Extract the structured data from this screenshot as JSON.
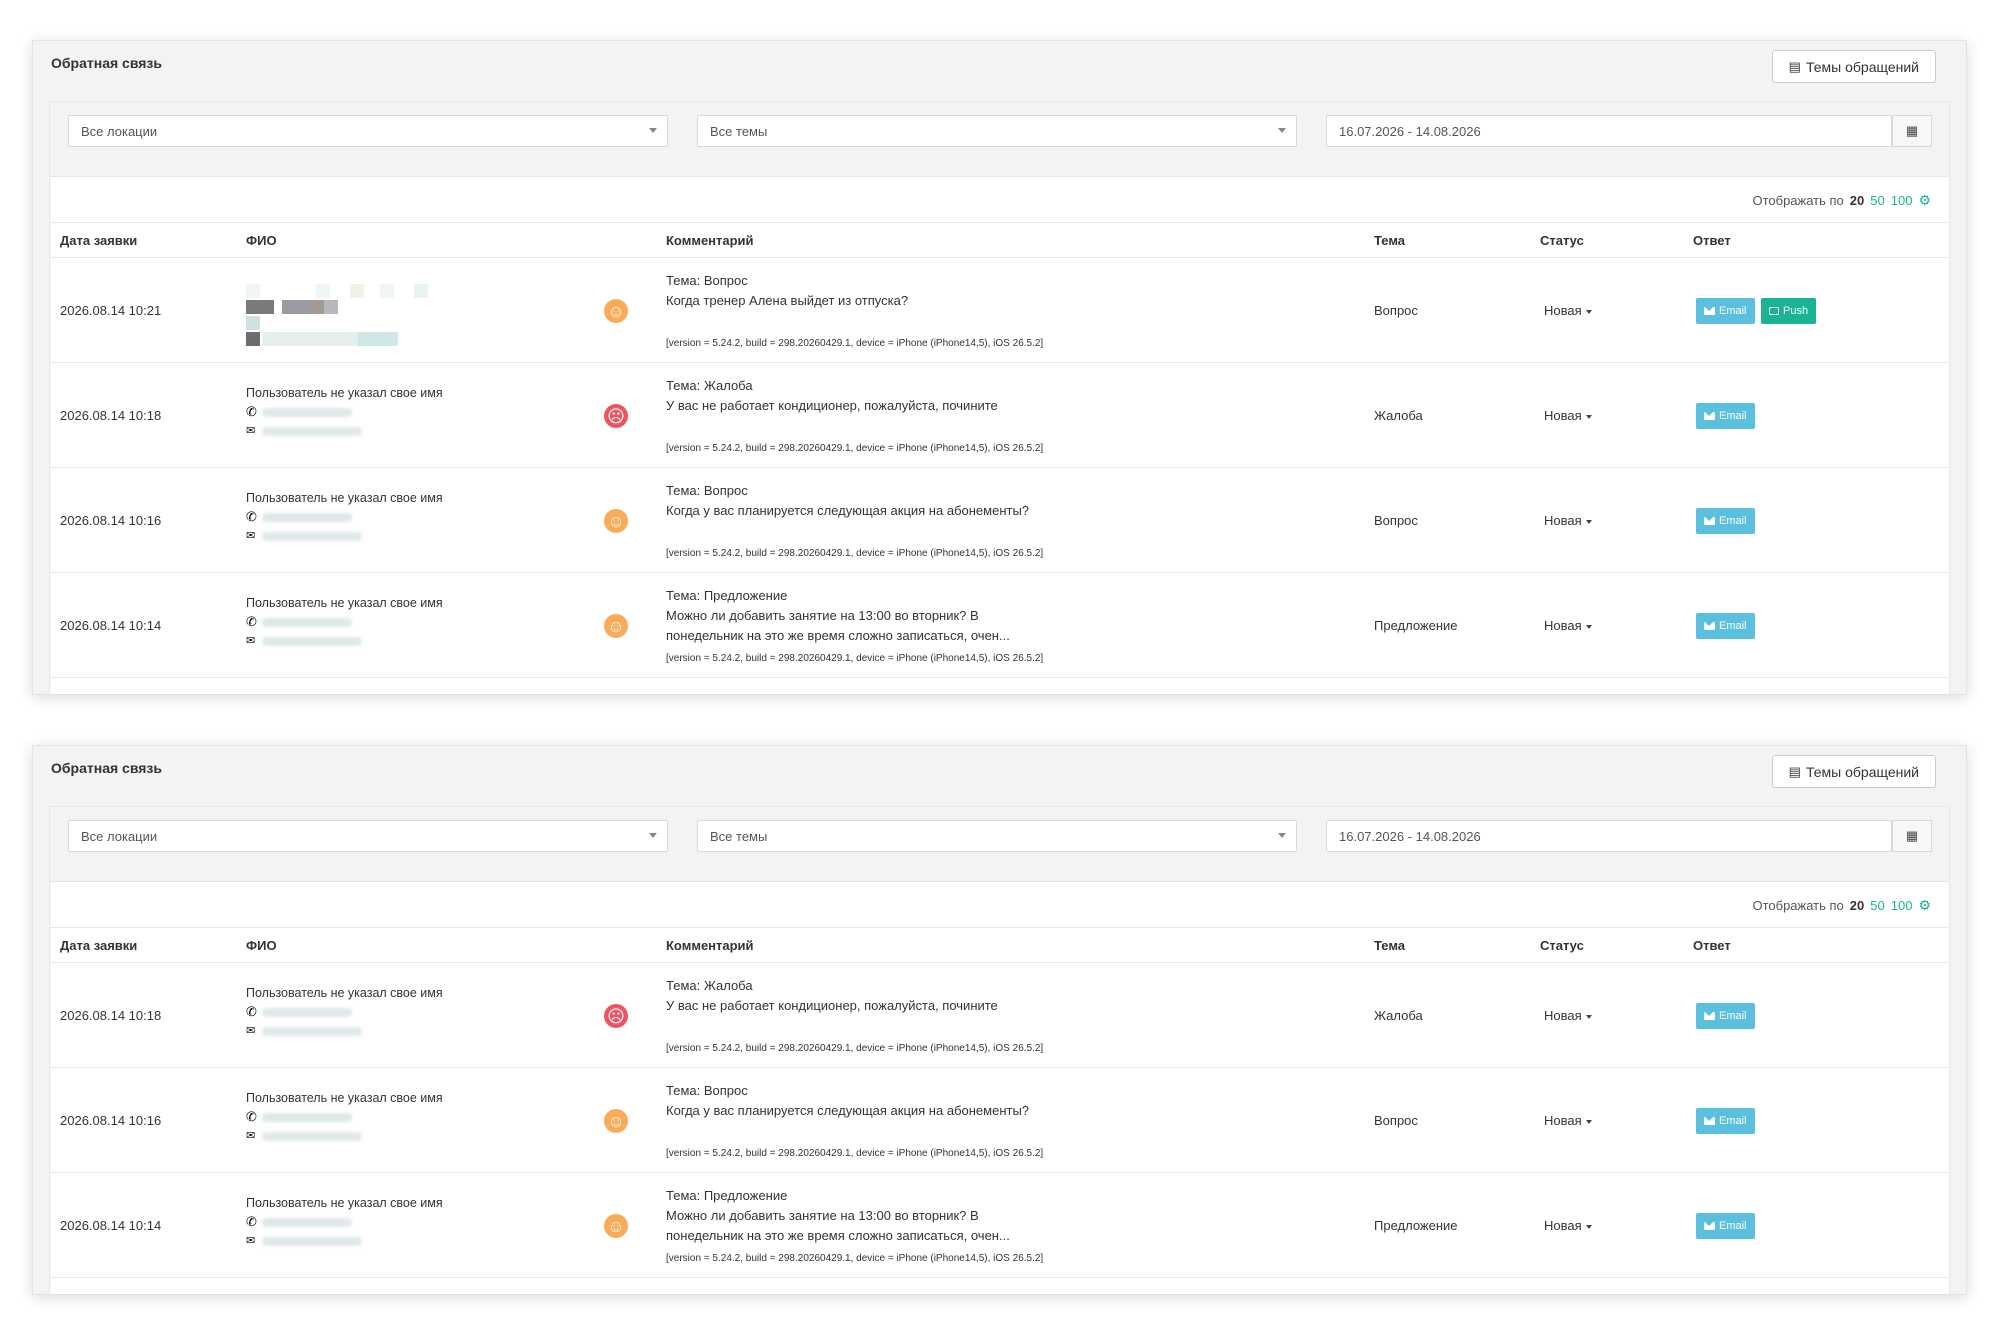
{
  "panels": [
    {
      "title": "Обратная связь",
      "topics_button": "Темы обращений",
      "filters": {
        "location": "Все локации",
        "topic": "Все темы",
        "date_range": "16.07.2026 - 14.08.2026"
      },
      "per_page": {
        "label": "Отображать по",
        "current": "20",
        "options": [
          "50",
          "100"
        ]
      },
      "columns": {
        "date": "Дата заявки",
        "name": "ФИО",
        "comment": "Комментарий",
        "topic": "Тема",
        "status": "Статус",
        "answer": "Ответ"
      },
      "rows": [
        {
          "date": "2026.08.14 10:21",
          "name": "",
          "mood": "neutral",
          "comment_topic": "Тема: Вопрос",
          "comment": "Когда тренер Алена выйдет из отпуска?",
          "meta": "[version = 5.24.2, build = 298.20260429.1, device = iPhone (iPhone14,5), iOS 26.5.2]",
          "topic": "Вопрос",
          "status": "Новая",
          "email": "Email",
          "push": "Push"
        },
        {
          "date": "2026.08.14 10:18",
          "name": "Пользователь не указал свое имя",
          "mood": "sad",
          "comment_topic": "Тема: Жалоба",
          "comment": "У вас не работает кондиционер, пожалуйста, почините",
          "meta": "[version = 5.24.2, build = 298.20260429.1, device = iPhone (iPhone14,5), iOS 26.5.2]",
          "topic": "Жалоба",
          "status": "Новая",
          "email": "Email"
        },
        {
          "date": "2026.08.14 10:16",
          "name": "Пользователь не указал свое имя",
          "mood": "neutral",
          "comment_topic": "Тема: Вопрос",
          "comment": "Когда у вас планируется следующая акция на абонементы?",
          "meta": "[version = 5.24.2, build = 298.20260429.1, device = iPhone (iPhone14,5), iOS 26.5.2]",
          "topic": "Вопрос",
          "status": "Новая",
          "email": "Email"
        },
        {
          "date": "2026.08.14 10:14",
          "name": "Пользователь не указал свое имя",
          "mood": "neutral",
          "comment_topic": "Тема: Предложение",
          "comment": "Можно ли добавить занятие на 13:00 во вторник? В понедельник на это же время сложно записаться, очен...",
          "meta": "[version = 5.24.2, build = 298.20260429.1, device = iPhone (iPhone14,5), iOS 26.5.2]",
          "topic": "Предложение",
          "status": "Новая",
          "email": "Email"
        }
      ]
    },
    {
      "title": "Обратная связь",
      "topics_button": "Темы обращений",
      "filters": {
        "location": "Все локации",
        "topic": "Все темы",
        "date_range": "16.07.2026 - 14.08.2026"
      },
      "per_page": {
        "label": "Отображать по",
        "current": "20",
        "options": [
          "50",
          "100"
        ]
      },
      "columns": {
        "date": "Дата заявки",
        "name": "ФИО",
        "comment": "Комментарий",
        "topic": "Тема",
        "status": "Статус",
        "answer": "Ответ"
      },
      "rows": [
        {
          "date": "2026.08.14 10:18",
          "name": "Пользователь не указал свое имя",
          "mood": "sad",
          "comment_topic": "Тема: Жалоба",
          "comment": "У вас не работает кондиционер, пожалуйста, почините",
          "meta": "[version = 5.24.2, build = 298.20260429.1, device = iPhone (iPhone14,5), iOS 26.5.2]",
          "topic": "Жалоба",
          "status": "Новая",
          "email": "Email"
        },
        {
          "date": "2026.08.14 10:16",
          "name": "Пользователь не указал свое имя",
          "mood": "neutral",
          "comment_topic": "Тема: Вопрос",
          "comment": "Когда у вас планируется следующая акция на абонементы?",
          "meta": "[version = 5.24.2, build = 298.20260429.1, device = iPhone (iPhone14,5), iOS 26.5.2]",
          "topic": "Вопрос",
          "status": "Новая",
          "email": "Email"
        },
        {
          "date": "2026.08.14 10:14",
          "name": "Пользователь не указал свое имя",
          "mood": "neutral",
          "comment_topic": "Тема: Предложение",
          "comment": "Можно ли добавить занятие на 13:00 во вторник? В понедельник на это же время сложно записаться, очен...",
          "meta": "[version = 5.24.2, build = 298.20260429.1, device = iPhone (iPhone14,5), iOS 26.5.2]",
          "topic": "Предложение",
          "status": "Новая",
          "email": "Email"
        }
      ]
    }
  ],
  "colors": {
    "accent": "#1ab394",
    "email_button": "#5bc0de",
    "mood_neutral": "#f8ac59",
    "mood_sad": "#ed5565"
  }
}
